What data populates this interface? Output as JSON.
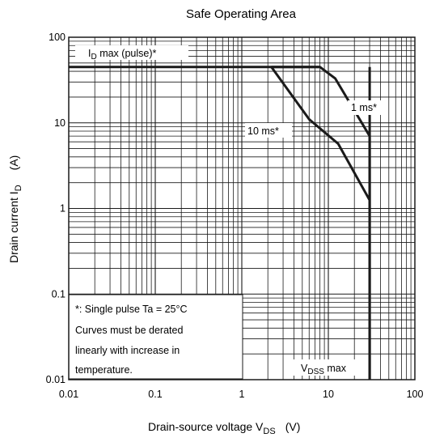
{
  "chart_data": {
    "type": "line",
    "title": "Safe Operating Area",
    "xlabel": {
      "main": "Drain-source voltage  V",
      "sub": "DS",
      "unit": "(V)"
    },
    "ylabel": {
      "main": "Drain current  I",
      "sub": "D",
      "unit": "(A)"
    },
    "x_scale": "log",
    "y_scale": "log",
    "xlim": [
      0.01,
      100
    ],
    "ylim": [
      0.01,
      100
    ],
    "x_ticks": [
      "0.01",
      "0.1",
      "1",
      "10",
      "100"
    ],
    "y_ticks": [
      "0.01",
      "0.1",
      "1",
      "10",
      "100"
    ],
    "grid": true,
    "series": [
      {
        "name": "ID max (pulse)*",
        "x": [
          0.01,
          8
        ],
        "y": [
          45,
          45
        ]
      },
      {
        "name": "1 ms*",
        "x": [
          2.2,
          8,
          12,
          30,
          30
        ],
        "y": [
          45,
          45,
          33,
          7,
          0.01
        ]
      },
      {
        "name": "10 ms*",
        "x": [
          2.2,
          6,
          13,
          30
        ],
        "y": [
          45,
          11,
          5.7,
          1.25
        ]
      },
      {
        "name": "VDSS max",
        "x": [
          30,
          30
        ],
        "y": [
          0.01,
          45
        ]
      }
    ],
    "annotations": {
      "id_max": {
        "main": "I",
        "sub": "D",
        "rest": " max (pulse)*"
      },
      "one_ms": "1 ms*",
      "ten_ms": "10 ms*",
      "vdss": {
        "main": "V",
        "sub": "DSS",
        "rest": " max"
      },
      "note_lines": [
        "*:  Single pulse    Ta = 25°C",
        "Curves must be derated",
        "linearly with increase in",
        "temperature."
      ]
    }
  }
}
